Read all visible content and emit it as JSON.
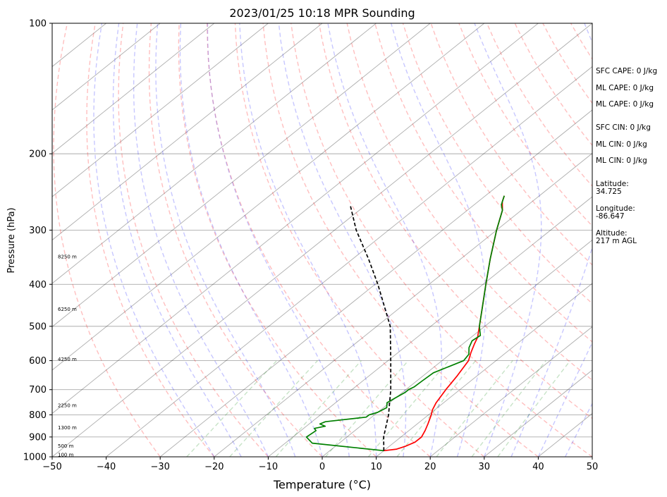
{
  "chart_data": {
    "type": "line",
    "title": "2023/01/25 10:18 MPR Sounding",
    "xlabel": "Temperature (°C)",
    "ylabel": "Pressure (hPa)",
    "xlim": [
      -50,
      50
    ],
    "ylim": [
      1000,
      100
    ],
    "y_scale": "log",
    "skew": true,
    "grid": true,
    "x_ticks": [
      "−50",
      "−40",
      "−30",
      "−20",
      "−10",
      "0",
      "10",
      "20",
      "30",
      "40",
      "50"
    ],
    "y_ticks": [
      "100",
      "200",
      "300",
      "400",
      "500",
      "600",
      "700",
      "800",
      "900",
      "1000"
    ],
    "series": [
      {
        "key": "temperature",
        "color": "#ff0000",
        "style": "solid",
        "points": [
          [
            968,
            10
          ],
          [
            960,
            12
          ],
          [
            945,
            13
          ],
          [
            925,
            13.8
          ],
          [
            900,
            13.8
          ],
          [
            870,
            13
          ],
          [
            840,
            12
          ],
          [
            800,
            10.5
          ],
          [
            780,
            9.6
          ],
          [
            750,
            8.6
          ],
          [
            700,
            7.4
          ],
          [
            650,
            6.3
          ],
          [
            600,
            4.9
          ],
          [
            575,
            3.5
          ],
          [
            550,
            2.2
          ],
          [
            530,
            1.2
          ],
          [
            500,
            -1
          ],
          [
            450,
            -5
          ],
          [
            400,
            -9.5
          ],
          [
            350,
            -14.5
          ],
          [
            300,
            -20
          ],
          [
            270,
            -23.5
          ],
          [
            258,
            -25.5
          ],
          [
            250,
            -26.5
          ]
        ]
      },
      {
        "key": "dewpoint",
        "color": "#008000",
        "style": "solid",
        "points": [
          [
            968,
            10
          ],
          [
            930,
            -5
          ],
          [
            900,
            -7.5
          ],
          [
            880,
            -7.3
          ],
          [
            870,
            -7.2
          ],
          [
            860,
            -8
          ],
          [
            850,
            -6.5
          ],
          [
            840,
            -8
          ],
          [
            830,
            -7.5
          ],
          [
            810,
            -1
          ],
          [
            800,
            -1
          ],
          [
            790,
            0
          ],
          [
            770,
            0.6
          ],
          [
            750,
            -0.5
          ],
          [
            730,
            0
          ],
          [
            710,
            0.5
          ],
          [
            700,
            0.5
          ],
          [
            690,
            0.9
          ],
          [
            670,
            1
          ],
          [
            640,
            1.2
          ],
          [
            600,
            4
          ],
          [
            580,
            3.5
          ],
          [
            560,
            2
          ],
          [
            540,
            1
          ],
          [
            525,
            1.3
          ],
          [
            500,
            -1
          ],
          [
            450,
            -5
          ],
          [
            400,
            -9.5
          ],
          [
            350,
            -14.5
          ],
          [
            300,
            -20
          ],
          [
            270,
            -23.5
          ],
          [
            262,
            -25
          ],
          [
            250,
            -26.5
          ]
        ]
      },
      {
        "key": "parcel",
        "color": "#000000",
        "style": "dashed",
        "points": [
          [
            968,
            10
          ],
          [
            900,
            6.8
          ],
          [
            800,
            2.6
          ],
          [
            700,
            -2.8
          ],
          [
            600,
            -9.5
          ],
          [
            500,
            -17.5
          ],
          [
            400,
            -29.5
          ],
          [
            350,
            -37
          ],
          [
            300,
            -46
          ],
          [
            262,
            -53
          ]
        ]
      }
    ],
    "annotations": {
      "height_labels": [
        {
          "label": "100 m",
          "p": 988
        },
        {
          "label": "500 m",
          "p": 944
        },
        {
          "label": "1300 m",
          "p": 856
        },
        {
          "label": "2250 m",
          "p": 761
        },
        {
          "label": "4250 m",
          "p": 595
        },
        {
          "label": "6250 m",
          "p": 456
        },
        {
          "label": "8250 m",
          "p": 345
        }
      ],
      "side_text": [
        [
          "SFC CAPE: 0 J/kg"
        ],
        [
          "ML CAPE: 0 J/kg"
        ],
        [
          "ML CAPE: 0 J/kg"
        ],
        [
          "SFC CIN: 0 J/kg"
        ],
        [
          "ML CIN: 0 J/kg"
        ],
        [
          "ML CIN: 0 J/kg"
        ],
        [
          "Latitude:",
          "34.725"
        ],
        [
          "Longitude:",
          "-86.647"
        ],
        [
          "Altitude:",
          "217 m AGL"
        ]
      ]
    },
    "reference_lines": {
      "isotherms_color": "#000000",
      "dry_adiabats_color": "#ff0000",
      "moist_adiabats_color": "#0000ff",
      "mixing_ratio_color": "#008000"
    }
  }
}
